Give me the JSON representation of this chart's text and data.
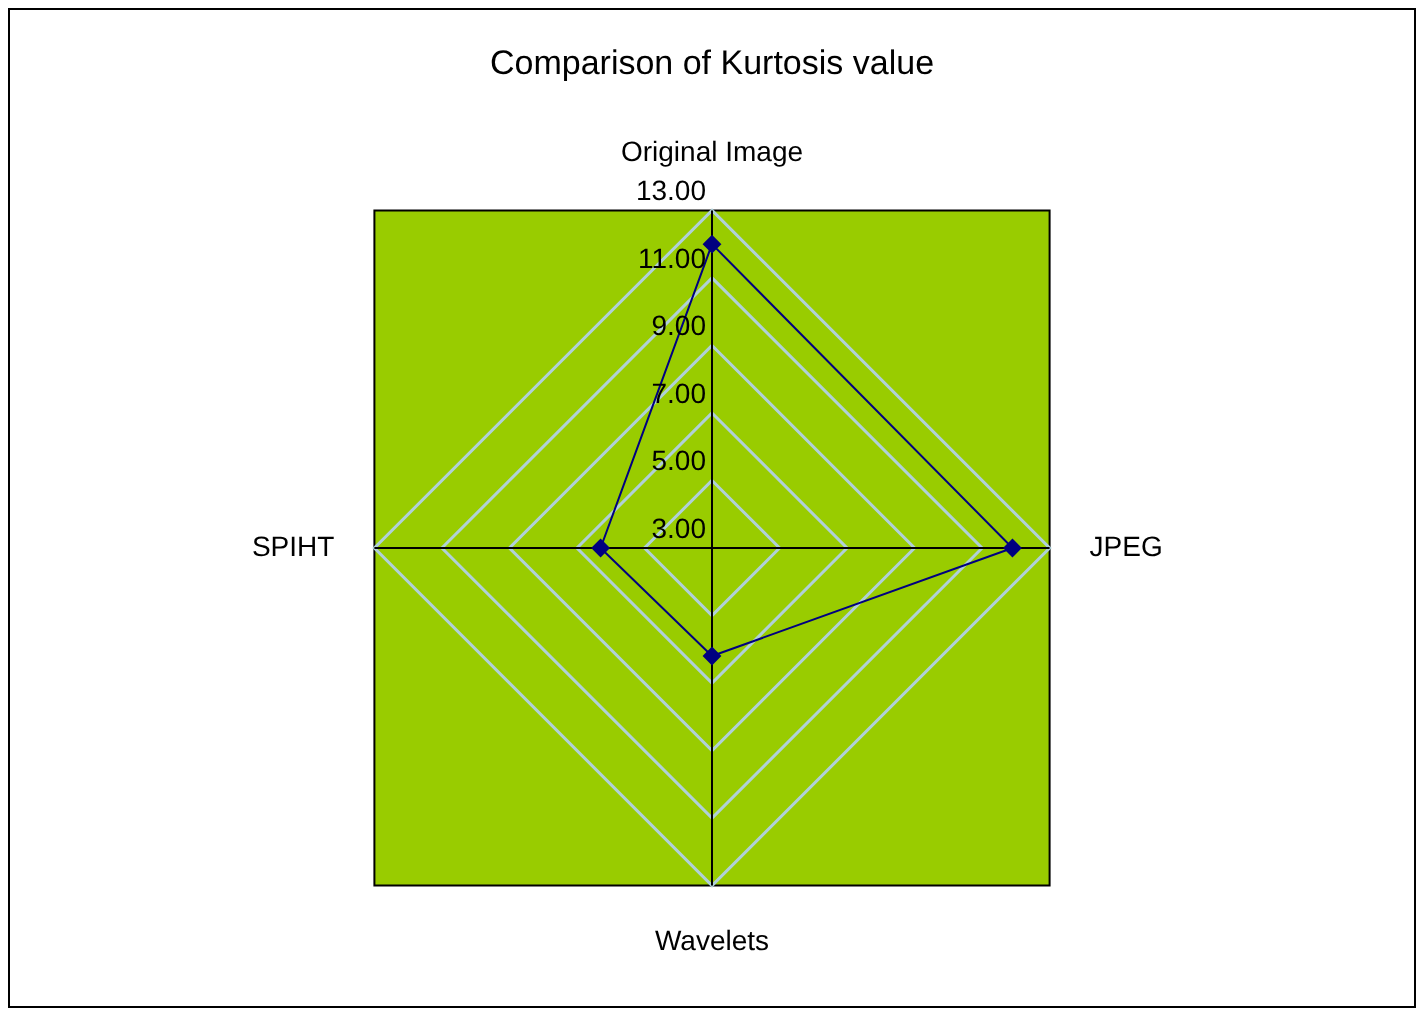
{
  "chart_data": {
    "type": "radar",
    "title": "Comparison of Kurtosis value",
    "categories": [
      "Original Image",
      "JPEG",
      "Wavelets",
      "SPIHT"
    ],
    "series": [
      {
        "color": "#000080",
        "values": [
          12.0,
          11.9,
          6.2,
          6.3
        ]
      }
    ],
    "ylim": [
      3,
      13
    ],
    "yticks": [
      {
        "value": 3,
        "label": "3.00"
      },
      {
        "value": 5,
        "label": "5.00"
      },
      {
        "value": 7,
        "label": "7.00"
      },
      {
        "value": 9,
        "label": "9.00"
      },
      {
        "value": 11,
        "label": "11.00"
      },
      {
        "value": 13,
        "label": "13.00"
      }
    ],
    "grid": true,
    "legend": false,
    "marker": "diamond"
  }
}
